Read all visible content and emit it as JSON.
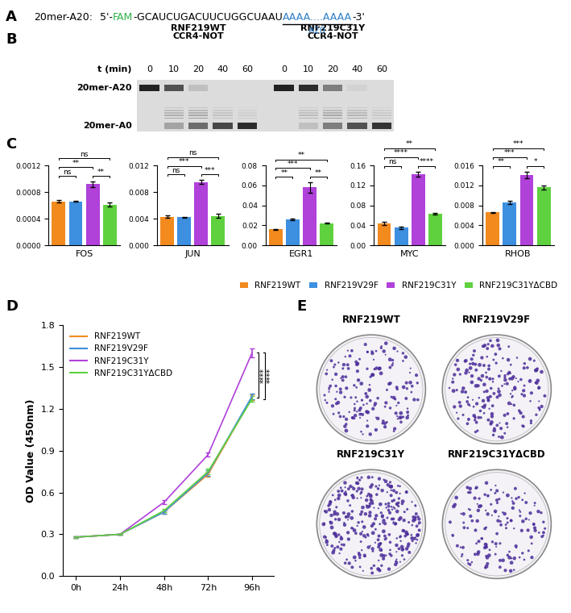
{
  "panel_labels": [
    "A",
    "B",
    "C",
    "D",
    "E"
  ],
  "sequence": {
    "name": "20mer-A20:",
    "parts": [
      {
        "text": "5'-",
        "color": "#000000"
      },
      {
        "text": "FAM",
        "color": "#2bb34a"
      },
      {
        "text": "-GCAUCUGACUUCUGGCUAAU",
        "color": "#000000"
      },
      {
        "text": "AAAA....AAAA",
        "color": "#2f80c8",
        "underline_label": "A20"
      },
      {
        "text": "-3'",
        "color": "#000000"
      }
    ]
  },
  "gel": {
    "time_label": "t (min)",
    "times": [
      0,
      10,
      20,
      40,
      60
    ],
    "groups": [
      {
        "protein": "RNF219WT",
        "complex": "CCR4-NOT"
      },
      {
        "protein": "RNF219C31Y",
        "complex": "CCR4-NOT"
      }
    ],
    "bands": [
      "20mer-A20",
      "20mer-A0"
    ]
  },
  "chart_data": [
    {
      "type": "bar",
      "categories": [
        "FOS"
      ],
      "ylim": [
        0,
        0.0012
      ],
      "yticks": [
        {
          "value": 0,
          "label": "0.0000"
        },
        0.0004,
        0.0008,
        0.0012
      ],
      "series": [
        {
          "name": "RNF219WT",
          "color": "#f28a1e",
          "values": [
            0.00066
          ],
          "error": [
            2e-05
          ]
        },
        {
          "name": "RNF219V29F",
          "color": "#3d8fe0",
          "values": [
            0.00066
          ],
          "error": [
            1e-05
          ]
        },
        {
          "name": "RNF219C31Y",
          "color": "#b041d9",
          "values": [
            0.00092
          ],
          "error": [
            4e-05
          ]
        },
        {
          "name": "RNF219C31YΔCBD",
          "color": "#5fd13f",
          "values": [
            0.00061
          ],
          "error": [
            3e-05
          ]
        }
      ],
      "comparisons": [
        {
          "between": [
            "RNF219WT",
            "RNF219C31YΔCBD"
          ],
          "label": "ns"
        },
        {
          "between": [
            "RNF219WT",
            "RNF219C31Y"
          ],
          "label": "**"
        },
        {
          "between": [
            "RNF219WT",
            "RNF219V29F"
          ],
          "label": "ns"
        },
        {
          "between": [
            "RNF219C31Y",
            "RNF219C31YΔCBD"
          ],
          "label": "**"
        }
      ]
    },
    {
      "type": "bar",
      "categories": [
        "JUN"
      ],
      "ylim": [
        0,
        0.012
      ],
      "yticks": [
        {
          "value": 0,
          "label": "0.000"
        },
        0.004,
        0.008,
        0.012
      ],
      "series": [
        {
          "name": "RNF219WT",
          "color": "#f28a1e",
          "values": [
            0.0043
          ],
          "error": [
            0.0002
          ]
        },
        {
          "name": "RNF219V29F",
          "color": "#3d8fe0",
          "values": [
            0.0042
          ],
          "error": [
            0.0001
          ]
        },
        {
          "name": "RNF219C31Y",
          "color": "#b041d9",
          "values": [
            0.0095
          ],
          "error": [
            0.0003
          ]
        },
        {
          "name": "RNF219C31YΔCBD",
          "color": "#5fd13f",
          "values": [
            0.0044
          ],
          "error": [
            0.0003
          ]
        }
      ],
      "comparisons": [
        {
          "between": [
            "RNF219WT",
            "RNF219C31YΔCBD"
          ],
          "label": "ns"
        },
        {
          "between": [
            "RNF219WT",
            "RNF219C31Y"
          ],
          "label": "***"
        },
        {
          "between": [
            "RNF219WT",
            "RNF219V29F"
          ],
          "label": "ns"
        },
        {
          "between": [
            "RNF219C31Y",
            "RNF219C31YΔCBD"
          ],
          "label": "***"
        }
      ]
    },
    {
      "type": "bar",
      "categories": [
        "EGR1"
      ],
      "ylim": [
        0,
        0.08
      ],
      "yticks": [
        {
          "value": 0,
          "label": "0.00"
        },
        0.02,
        0.04,
        0.06,
        0.08
      ],
      "series": [
        {
          "name": "RNF219WT",
          "color": "#f28a1e",
          "values": [
            0.016
          ],
          "error": [
            0.0005
          ]
        },
        {
          "name": "RNF219V29F",
          "color": "#3d8fe0",
          "values": [
            0.026
          ],
          "error": [
            0.001
          ]
        },
        {
          "name": "RNF219C31Y",
          "color": "#b041d9",
          "values": [
            0.058
          ],
          "error": [
            0.005
          ]
        },
        {
          "name": "RNF219C31YΔCBD",
          "color": "#5fd13f",
          "values": [
            0.022
          ],
          "error": [
            0.0005
          ]
        }
      ],
      "comparisons": [
        {
          "between": [
            "RNF219WT",
            "RNF219C31YΔCBD"
          ],
          "label": "**"
        },
        {
          "between": [
            "RNF219WT",
            "RNF219C31Y"
          ],
          "label": "***"
        },
        {
          "between": [
            "RNF219WT",
            "RNF219V29F"
          ],
          "label": "**"
        },
        {
          "between": [
            "RNF219C31Y",
            "RNF219C31YΔCBD"
          ],
          "label": "**"
        }
      ]
    },
    {
      "type": "bar",
      "categories": [
        "MYC"
      ],
      "ylim": [
        0,
        0.16
      ],
      "yticks": [
        {
          "value": 0,
          "label": "0.00"
        },
        0.04,
        0.08,
        0.12,
        0.16
      ],
      "series": [
        {
          "name": "RNF219WT",
          "color": "#f28a1e",
          "values": [
            0.044
          ],
          "error": [
            0.003
          ]
        },
        {
          "name": "RNF219V29F",
          "color": "#3d8fe0",
          "values": [
            0.035
          ],
          "error": [
            0.002
          ]
        },
        {
          "name": "RNF219C31Y",
          "color": "#b041d9",
          "values": [
            0.143
          ],
          "error": [
            0.005
          ]
        },
        {
          "name": "RNF219C31YΔCBD",
          "color": "#5fd13f",
          "values": [
            0.063
          ],
          "error": [
            0.002
          ]
        }
      ],
      "comparisons": [
        {
          "between": [
            "RNF219WT",
            "RNF219C31YΔCBD"
          ],
          "label": "**"
        },
        {
          "between": [
            "RNF219WT",
            "RNF219C31Y"
          ],
          "label": "****"
        },
        {
          "between": [
            "RNF219WT",
            "RNF219V29F"
          ],
          "label": "ns"
        },
        {
          "between": [
            "RNF219C31Y",
            "RNF219C31YΔCBD"
          ],
          "label": "****"
        }
      ]
    },
    {
      "type": "bar",
      "categories": [
        "RHOB"
      ],
      "ylim": [
        0,
        0.016
      ],
      "yticks": [
        {
          "value": 0,
          "label": "0.000"
        },
        0.004,
        0.008,
        0.012,
        0.016
      ],
      "legend": "lower right",
      "series": [
        {
          "name": "RNF219WT",
          "color": "#f28a1e",
          "values": [
            0.0066
          ],
          "error": [
            0.0001
          ]
        },
        {
          "name": "RNF219V29F",
          "color": "#3d8fe0",
          "values": [
            0.0086
          ],
          "error": [
            0.0003
          ]
        },
        {
          "name": "RNF219C31Y",
          "color": "#b041d9",
          "values": [
            0.0141
          ],
          "error": [
            0.0007
          ]
        },
        {
          "name": "RNF219C31YΔCBD",
          "color": "#5fd13f",
          "values": [
            0.0116
          ],
          "error": [
            0.0004
          ]
        }
      ],
      "comparisons": [
        {
          "between": [
            "RNF219WT",
            "RNF219C31YΔCBD"
          ],
          "label": "***"
        },
        {
          "between": [
            "RNF219WT",
            "RNF219C31Y"
          ],
          "label": "***"
        },
        {
          "between": [
            "RNF219WT",
            "RNF219V29F"
          ],
          "label": "**"
        },
        {
          "between": [
            "RNF219C31Y",
            "RNF219C31YΔCBD"
          ],
          "label": "*"
        }
      ]
    },
    {
      "type": "line",
      "y_label": "OD Value (450nm)",
      "categories": [
        "0h",
        "24h",
        "48h",
        "72h",
        "96h"
      ],
      "ylim": [
        0.0,
        1.8
      ],
      "yticks": [
        0.0,
        0.3,
        0.6,
        0.9,
        1.2,
        1.5,
        1.8
      ],
      "legend": "upper left",
      "series": [
        {
          "name": "RNF219WT",
          "color": "#f28a1e",
          "values": [
            0.28,
            0.3,
            0.46,
            0.73,
            1.28
          ],
          "error": [
            0.005,
            0.005,
            0.01,
            0.02,
            0.02
          ]
        },
        {
          "name": "RNF219V29F",
          "color": "#3d8fe0",
          "values": [
            0.28,
            0.3,
            0.46,
            0.74,
            1.29
          ],
          "error": [
            0.005,
            0.005,
            0.01,
            0.02,
            0.02
          ]
        },
        {
          "name": "RNF219C31Y",
          "color": "#b041d9",
          "values": [
            0.28,
            0.3,
            0.53,
            0.87,
            1.6
          ],
          "error": [
            0.005,
            0.005,
            0.015,
            0.015,
            0.03
          ]
        },
        {
          "name": "RNF219C31YΔCBD",
          "color": "#5fd13f",
          "values": [
            0.28,
            0.3,
            0.47,
            0.75,
            1.27
          ],
          "error": [
            0.005,
            0.005,
            0.01,
            0.02,
            0.02
          ]
        }
      ],
      "comparisons": [
        {
          "between": [
            "RNF219C31Y",
            "RNF219WT"
          ],
          "label": "****"
        },
        {
          "between": [
            "RNF219C31Y",
            "RNF219C31YΔCBD"
          ],
          "label": "****"
        }
      ]
    }
  ],
  "colony": {
    "plates": [
      "RNF219WT",
      "RNF219V29F",
      "RNF219C31Y",
      "RNF219C31YΔCBD"
    ]
  }
}
